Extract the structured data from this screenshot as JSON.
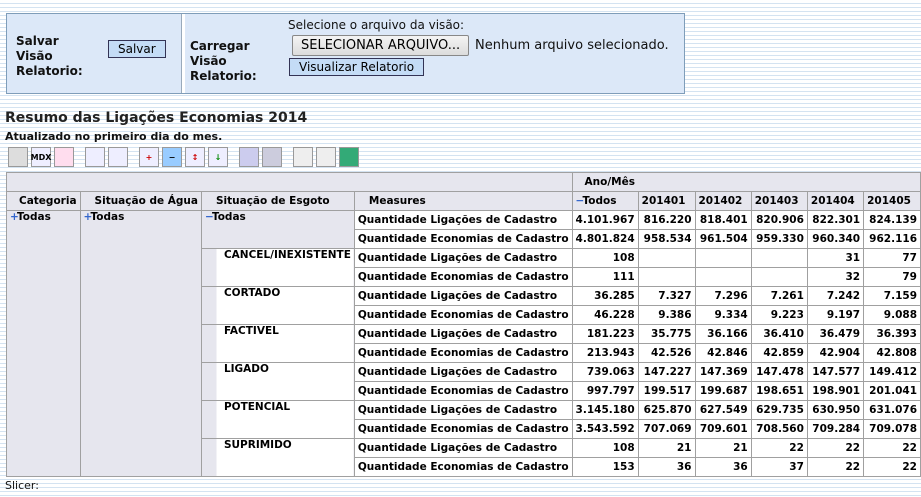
{
  "panel": {
    "save_label": "Salvar Visão Relatorio:",
    "save_button": "Salvar",
    "load_label": "Carregar Visão Relatorio:",
    "file_prompt": "Selecione o arquivo da visão:",
    "file_button": "SELECIONAR ARQUIVO...",
    "file_status": "Nenhum arquivo selecionado.",
    "view_button": "Visualizar Relatorio"
  },
  "report": {
    "title": "Resumo das Ligações Economias 2014",
    "subtitle": "Atualizado no primeiro dia do mes.",
    "toolbar_mdx": "MDX"
  },
  "table": {
    "column_group": "Ano/Mês",
    "headers": [
      "Categoria",
      "Situação de Água",
      "Situação de Esgoto",
      "Measures",
      "Todos",
      "201401",
      "201402",
      "201403",
      "201404",
      "201405"
    ],
    "categoria": "Todas",
    "agua": "Todas",
    "groups": [
      {
        "esgoto": "Todas",
        "rows": [
          {
            "measure": "Quantidade Ligações de Cadastro",
            "values": [
              "4.101.967",
              "816.220",
              "818.401",
              "820.906",
              "822.301",
              "824.139"
            ]
          },
          {
            "measure": "Quantidade Economias de Cadastro",
            "values": [
              "4.801.824",
              "958.534",
              "961.504",
              "959.330",
              "960.340",
              "962.116"
            ]
          }
        ]
      },
      {
        "esgoto": "CANCEL/INEXISTENTE",
        "rows": [
          {
            "measure": "Quantidade Ligações de Cadastro",
            "values": [
              "108",
              null,
              null,
              null,
              "31",
              "77"
            ]
          },
          {
            "measure": "Quantidade Economias de Cadastro",
            "values": [
              "111",
              null,
              null,
              null,
              "32",
              "79"
            ]
          }
        ]
      },
      {
        "esgoto": "CORTADO",
        "rows": [
          {
            "measure": "Quantidade Ligações de Cadastro",
            "values": [
              "36.285",
              "7.327",
              "7.296",
              "7.261",
              "7.242",
              "7.159"
            ]
          },
          {
            "measure": "Quantidade Economias de Cadastro",
            "values": [
              "46.228",
              "9.386",
              "9.334",
              "9.223",
              "9.197",
              "9.088"
            ]
          }
        ]
      },
      {
        "esgoto": "FACTIVEL",
        "rows": [
          {
            "measure": "Quantidade Ligações de Cadastro",
            "values": [
              "181.223",
              "35.775",
              "36.166",
              "36.410",
              "36.479",
              "36.393"
            ]
          },
          {
            "measure": "Quantidade Economias de Cadastro",
            "values": [
              "213.943",
              "42.526",
              "42.846",
              "42.859",
              "42.904",
              "42.808"
            ]
          }
        ]
      },
      {
        "esgoto": "LIGADO",
        "rows": [
          {
            "measure": "Quantidade Ligações de Cadastro",
            "values": [
              "739.063",
              "147.227",
              "147.369",
              "147.478",
              "147.577",
              "149.412"
            ]
          },
          {
            "measure": "Quantidade Economias de Cadastro",
            "values": [
              "997.797",
              "199.517",
              "199.687",
              "198.651",
              "198.901",
              "201.041"
            ]
          }
        ]
      },
      {
        "esgoto": "POTENCIAL",
        "rows": [
          {
            "measure": "Quantidade Ligações de Cadastro",
            "values": [
              "3.145.180",
              "625.870",
              "627.549",
              "629.735",
              "630.950",
              "631.076"
            ]
          },
          {
            "measure": "Quantidade Economias de Cadastro",
            "values": [
              "3.543.592",
              "707.069",
              "709.601",
              "708.560",
              "709.284",
              "709.078"
            ]
          }
        ]
      },
      {
        "esgoto": "SUPRIMIDO",
        "rows": [
          {
            "measure": "Quantidade Ligações de Cadastro",
            "values": [
              "108",
              "21",
              "21",
              "22",
              "22",
              "22"
            ]
          },
          {
            "measure": "Quantidade Economias de Cadastro",
            "values": [
              "153",
              "36",
              "36",
              "37",
              "22",
              "22"
            ]
          }
        ]
      }
    ]
  },
  "slicer": "Slicer:"
}
